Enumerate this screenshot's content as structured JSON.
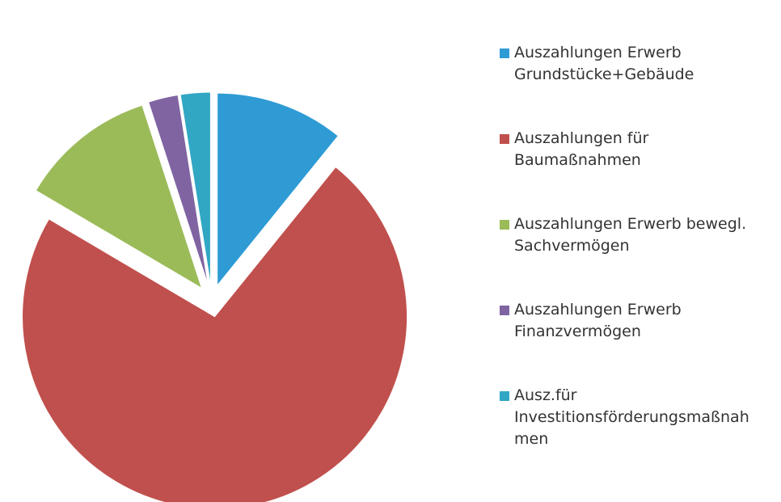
{
  "chart_data": {
    "type": "pie",
    "series": [
      {
        "name": "Auszahlungen Erwerb Grundstücke+Gebäude",
        "color": "#2f9bd5",
        "values": [
          10.8
        ]
      },
      {
        "name": "Auszahlungen für Baumaßnahmen",
        "color": "#c0504d",
        "values": [
          72.5
        ]
      },
      {
        "name": "Auszahlungen Erwerb bewegl. Sachvermögen",
        "color": "#9bbb59",
        "values": [
          11.5
        ]
      },
      {
        "name": "Auszahlungen Erwerb Finanzvermögen",
        "color": "#8064a2",
        "values": [
          2.5
        ]
      },
      {
        "name": "Ausz.für Investitionsförderungsmaßnahmen",
        "color": "#31a7c4",
        "values": [
          2.5
        ]
      }
    ]
  }
}
